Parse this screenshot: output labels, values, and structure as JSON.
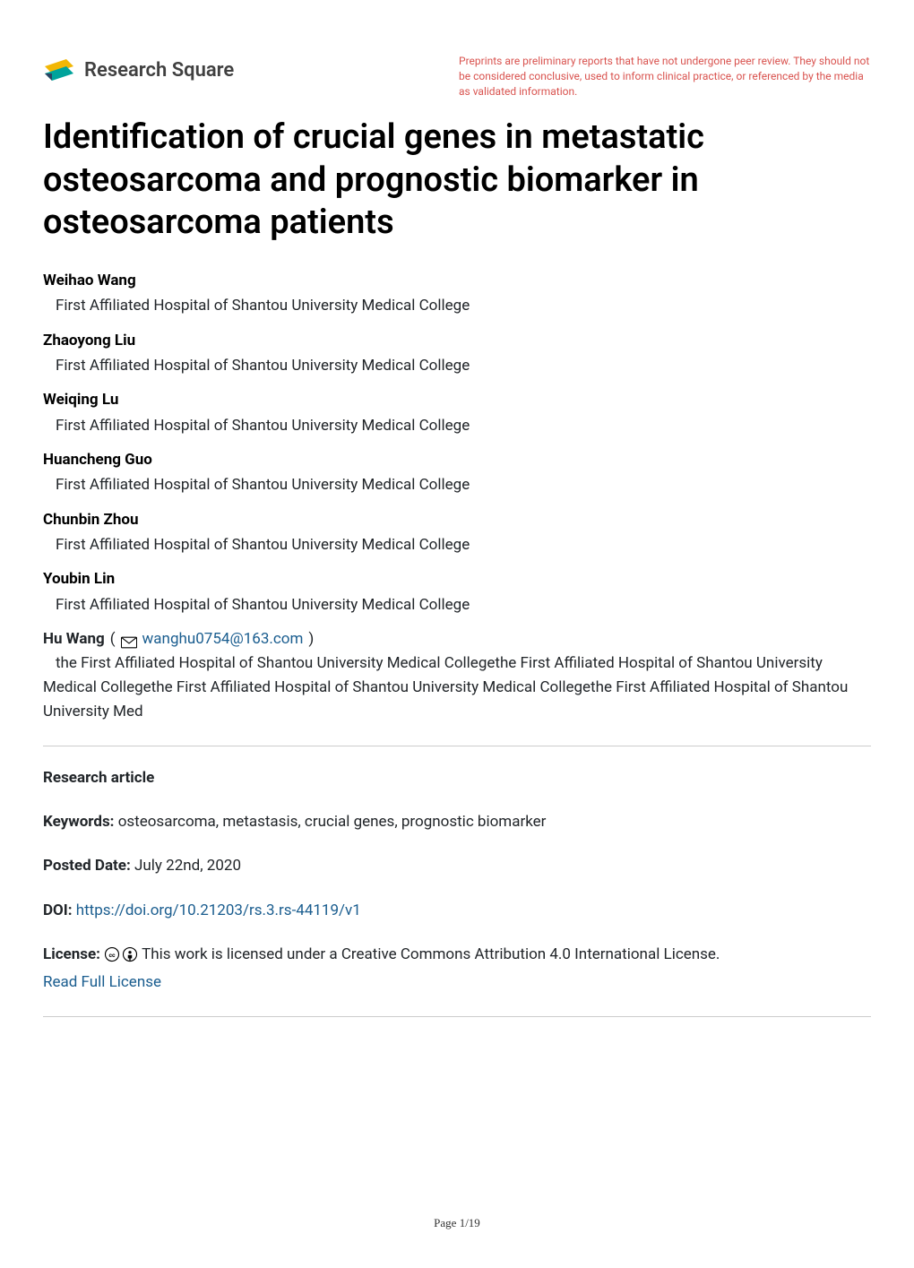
{
  "header": {
    "brand": "Research Square",
    "disclaimer": "Preprints are preliminary reports that have not undergone peer review. They should not be considered conclusive, used to inform clinical practice, or referenced by the media as validated information.",
    "disclaimer_color": "#d9534f",
    "logo_colors": {
      "yellow": "#f2b705",
      "teal": "#00a39b",
      "navy": "#2b4563"
    }
  },
  "title": "Identification of crucial genes in metastatic osteosarcoma and prognostic biomarker in osteosarcoma patients",
  "authors": [
    {
      "name": "Weihao Wang",
      "affiliation": "First Affiliated Hospital of Shantou University Medical College"
    },
    {
      "name": "Zhaoyong Liu",
      "affiliation": "First Affiliated Hospital of Shantou University Medical College"
    },
    {
      "name": "Weiqing Lu",
      "affiliation": "First Affiliated Hospital of Shantou University Medical College"
    },
    {
      "name": "Huancheng Guo",
      "affiliation": "First Affiliated Hospital of Shantou University Medical College"
    },
    {
      "name": "Chunbin Zhou",
      "affiliation": "First Affiliated Hospital of Shantou University Medical College"
    },
    {
      "name": "Youbin Lin",
      "affiliation": "First Affiliated Hospital of Shantou University Medical College"
    }
  ],
  "corresponding": {
    "name": "Hu Wang",
    "email": "wanghu0754@163.com",
    "affiliation_indent": "the First Affiliated Hospital of Shantou University Medical Collegethe First Affiliated Hospital of Shantou",
    "affiliation_rest": "University Medical Collegethe First Affiliated Hospital of Shantou University Medical Collegethe First Affiliated Hospital of Shantou University Med"
  },
  "meta": {
    "article_type": "Research article",
    "keywords_label": "Keywords:",
    "keywords": "osteosarcoma, metastasis, crucial genes, prognostic biomarker",
    "posted_label": "Posted Date:",
    "posted_date": "July 22nd, 2020",
    "doi_label": "DOI:",
    "doi": "https://doi.org/10.21203/rs.3.rs-44119/v1",
    "license_label": "License:",
    "license_text": "This work is licensed under a Creative Commons Attribution 4.0 International License.",
    "license_link_text": "Read Full License"
  },
  "footer": {
    "page": "Page 1/19"
  },
  "styles": {
    "link_color": "#1a5d8f",
    "text_color": "#212529",
    "rule_color": "#cccccc",
    "title_fontsize": 38,
    "body_fontsize": 17
  }
}
